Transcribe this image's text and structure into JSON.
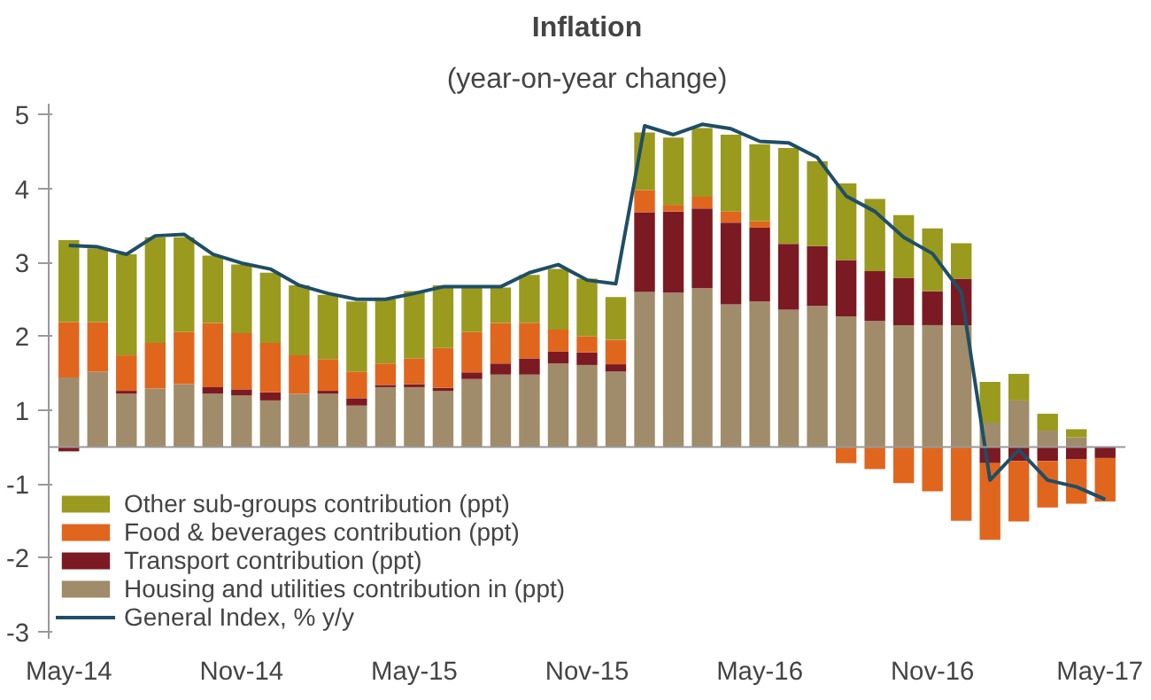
{
  "chart_data": {
    "type": "bar",
    "title": "Inflation",
    "subtitle": "(year-on-year change)",
    "stacked": true,
    "legend": "bottom left",
    "categories": [
      "May-14",
      null,
      null,
      null,
      null,
      null,
      "Nov-14",
      null,
      null,
      null,
      null,
      null,
      "May-15",
      null,
      null,
      null,
      null,
      null,
      "Nov-15",
      null,
      null,
      null,
      null,
      null,
      "May-16",
      null,
      null,
      null,
      null,
      null,
      "Nov-16",
      null,
      null,
      null,
      null,
      null,
      "May-17"
    ],
    "ylim": [
      -2.6,
      4.65
    ],
    "yticks": [
      {
        "value": 4.5,
        "label": "5"
      },
      {
        "value": 3.5,
        "label": "4"
      },
      {
        "value": 2.5,
        "label": "3"
      },
      {
        "value": 1.5,
        "label": "2"
      },
      {
        "value": 0.5,
        "label": "1"
      },
      {
        "value": -0.5,
        "label": "-1"
      },
      {
        "value": -1.5,
        "label": "-2"
      },
      {
        "value": -2.5,
        "label": "-3"
      }
    ],
    "series": [
      {
        "name": "Housing and utilities contribution in (ppt)",
        "color": "#a08c6a",
        "values": [
          0.94,
          1.02,
          0.72,
          0.79,
          0.85,
          0.72,
          0.7,
          0.63,
          0.72,
          0.72,
          0.56,
          0.81,
          0.81,
          0.76,
          0.92,
          0.98,
          0.98,
          1.13,
          1.11,
          1.02,
          2.1,
          2.09,
          2.15,
          1.93,
          1.97,
          1.86,
          1.91,
          1.77,
          1.71,
          1.65,
          1.65,
          1.65,
          0.33,
          0.63,
          0.22,
          0.13,
          null
        ]
      },
      {
        "name": "Transport contribution (ppt)",
        "color": "#7b1a22",
        "values": [
          -0.06,
          null,
          0.04,
          null,
          null,
          0.09,
          0.08,
          0.11,
          null,
          0.04,
          0.1,
          0.03,
          0.04,
          0.04,
          0.09,
          0.15,
          0.22,
          0.16,
          0.17,
          0.1,
          1.08,
          1.1,
          1.08,
          1.11,
          1.0,
          0.89,
          0.81,
          0.76,
          0.67,
          0.64,
          0.46,
          0.63,
          -0.22,
          -0.19,
          -0.19,
          -0.17,
          -0.15
        ]
      },
      {
        "name": "Food & beverages contribution (ppt)",
        "color": "#e0661e",
        "values": [
          0.75,
          0.67,
          0.48,
          0.62,
          0.71,
          0.87,
          0.76,
          0.67,
          0.52,
          0.43,
          0.36,
          0.29,
          0.35,
          0.54,
          0.55,
          0.55,
          0.48,
          0.3,
          0.22,
          0.33,
          0.3,
          0.09,
          0.16,
          0.15,
          0.09,
          null,
          null,
          -0.22,
          -0.3,
          -0.49,
          -0.6,
          -1.0,
          -1.04,
          -0.82,
          -0.63,
          -0.6,
          -0.59
        ]
      },
      {
        "name": "Other sub-groups contribution (ppt)",
        "color": "#9a9a1e",
        "values": [
          1.11,
          1.0,
          1.37,
          1.43,
          1.28,
          0.91,
          0.93,
          0.95,
          0.95,
          0.87,
          0.95,
          0.87,
          0.91,
          0.85,
          0.61,
          0.48,
          0.65,
          0.82,
          0.78,
          0.58,
          0.78,
          0.91,
          0.93,
          1.04,
          1.04,
          1.3,
          1.15,
          1.04,
          0.98,
          0.85,
          0.85,
          0.48,
          0.55,
          0.36,
          0.23,
          0.11,
          null
        ]
      },
      {
        "name": "General Index, % y/y",
        "type": "line",
        "color": "#1f4e66",
        "values": [
          2.73,
          2.71,
          2.61,
          2.86,
          2.88,
          2.61,
          2.49,
          2.41,
          2.19,
          2.08,
          2.0,
          2.0,
          2.08,
          2.17,
          2.17,
          2.17,
          2.36,
          2.47,
          2.26,
          2.21,
          4.35,
          4.23,
          4.37,
          4.31,
          4.14,
          4.12,
          3.92,
          3.4,
          3.19,
          2.84,
          2.62,
          2.1,
          -0.45,
          -0.04,
          -0.45,
          -0.54,
          -0.71
        ]
      }
    ]
  }
}
